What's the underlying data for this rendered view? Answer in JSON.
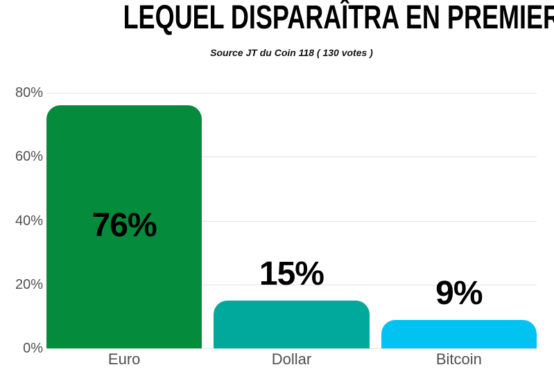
{
  "header": {
    "title": "LEQUEL DISPARAÎTRA EN PREMIER ?",
    "subtitle": "Source JT du Coin 118 ( 130 votes )"
  },
  "chart_data": {
    "type": "bar",
    "title": "LEQUEL DISPARAÎTRA EN PREMIER ?",
    "subtitle": "Source JT du Coin 118 ( 130 votes )",
    "categories": [
      "Euro",
      "Dollar",
      "Bitcoin"
    ],
    "values": [
      76,
      15,
      9
    ],
    "value_labels": [
      "76%",
      "15%",
      "9%"
    ],
    "bar_colors": [
      "#048b3c",
      "#00a99b",
      "#00c3f2"
    ],
    "xlabel": "",
    "ylabel": "",
    "ylim": [
      0,
      80
    ],
    "yticks": [
      0,
      20,
      40,
      60,
      80
    ],
    "ytick_labels": [
      "0%",
      "20%",
      "40%",
      "60%",
      "80%"
    ],
    "grid": true,
    "legend": "none",
    "colors": {
      "grid": "#e0e0e0",
      "axis_text": "#4f4f4f",
      "value_text": "#000000",
      "title_text": "#000000",
      "background": "#ffffff"
    }
  }
}
